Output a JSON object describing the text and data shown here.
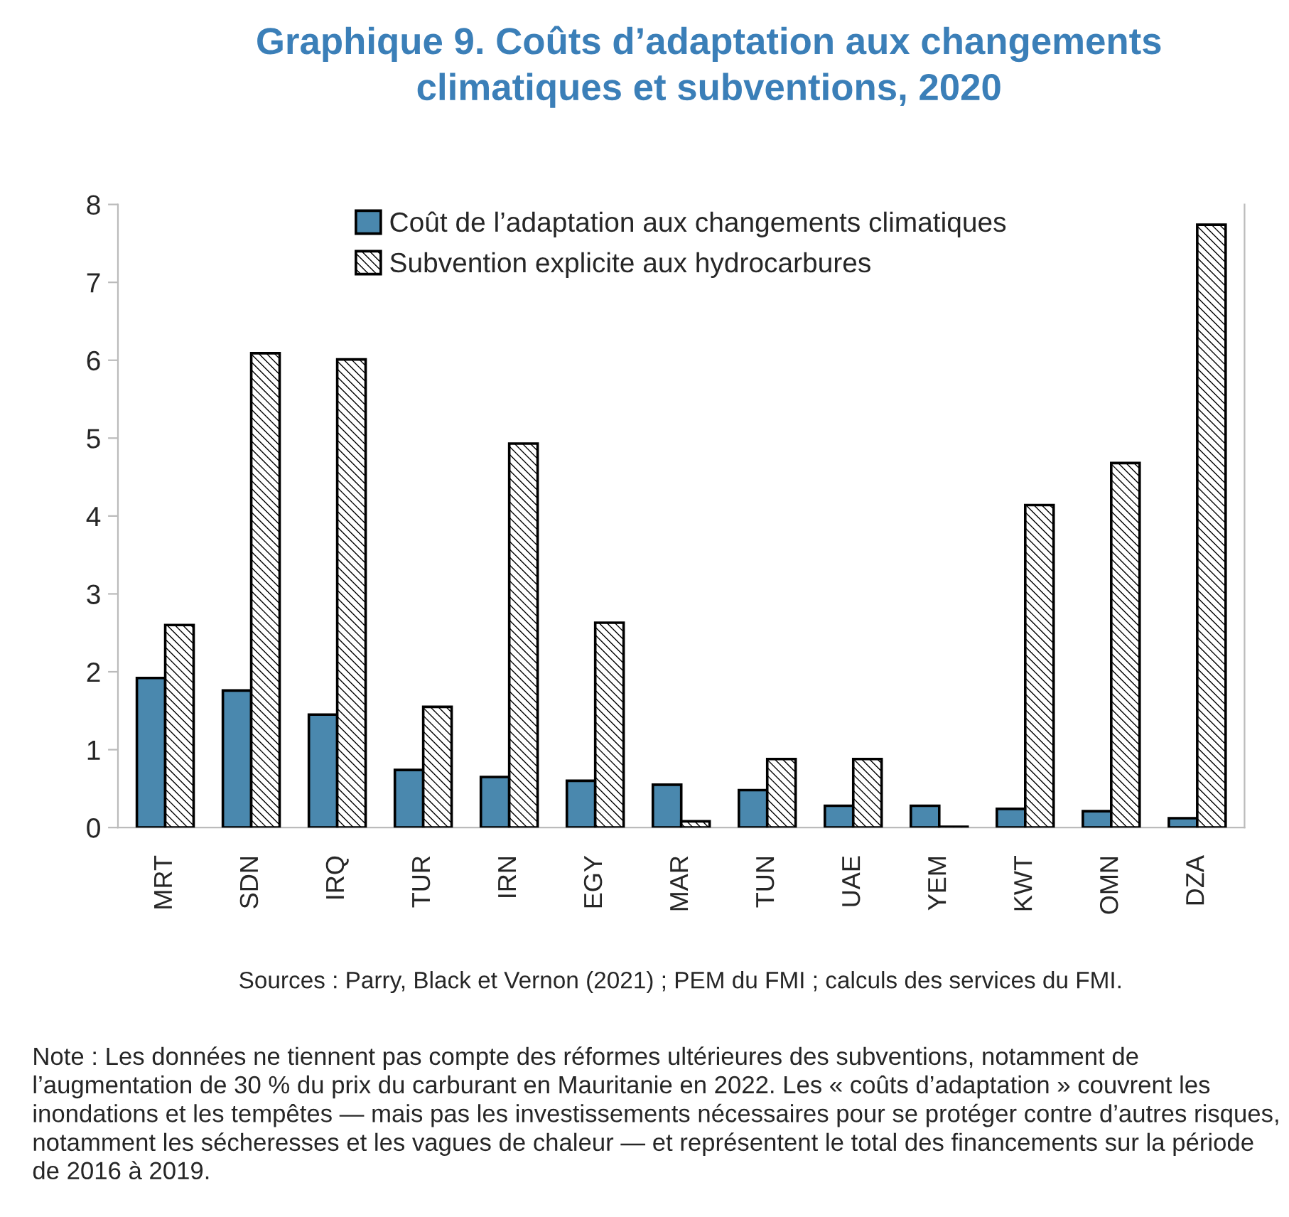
{
  "chart_data": {
    "type": "bar",
    "title": "Graphique 9. Coûts d’adaptation aux changements\nclimatiques et subventions, 2020",
    "categories": [
      "MRT",
      "SDN",
      "IRQ",
      "TUR",
      "IRN",
      "EGY",
      "MAR",
      "TUN",
      "UAE",
      "YEM",
      "KWT",
      "OMN",
      "DZA"
    ],
    "series": [
      {
        "name": "Coût de l’adaptation aux changements climatiques",
        "color": "#4a88ae",
        "values": [
          1.92,
          1.76,
          1.45,
          0.74,
          0.65,
          0.6,
          0.55,
          0.48,
          0.28,
          0.28,
          0.24,
          0.21,
          0.12
        ]
      },
      {
        "name": "Subvention explicite aux hydrocarbures",
        "color": "#000000",
        "values": [
          2.6,
          6.09,
          6.01,
          1.55,
          4.93,
          2.63,
          0.08,
          0.88,
          0.88,
          0.01,
          4.14,
          4.68,
          7.74
        ]
      }
    ],
    "ylim": [
      0,
      8
    ],
    "yticks": [
      0,
      1,
      2,
      3,
      4,
      5,
      6,
      7,
      8
    ],
    "grid": false,
    "legend": "top",
    "annotations": [
      "Sources : Parry, Black et Vernon (2021) ; PEM du FMI ; calculs des services du FMI.",
      "Note : Les données ne tiennent pas compte des réformes ultérieures des subventions, notamment de l’augmentation de 30 % du prix du carburant en Mauritanie en 2022. Les « coûts d’adaptation » couvrent les inondations et les tempêtes — mais pas les investissements nécessaires pour se protéger contre d’autres risques, notamment les sécheresses et les vagues de chaleur — et représentent le total des financements sur la période de 2016 à 2019."
    ]
  }
}
